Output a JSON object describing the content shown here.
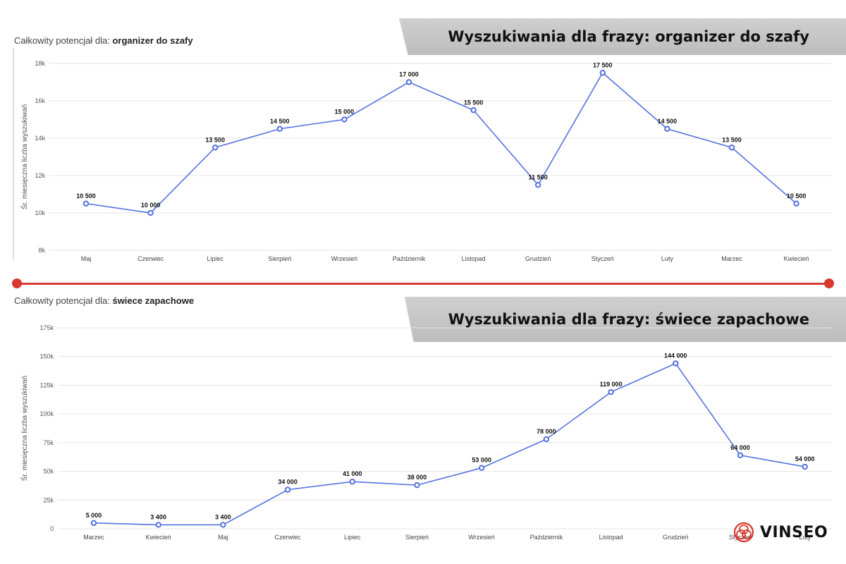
{
  "colors": {
    "line": "#5472e0",
    "accent": "#d83a30",
    "banner": "#c4c4c4"
  },
  "chart1": {
    "subtitle_prefix": "Całkowity potencjał dla: ",
    "subtitle_keyword": "organizer do szafy",
    "banner": "Wyszukiwania dla frazy: organizer do szafy"
  },
  "chart2": {
    "subtitle_prefix": "Całkowity potencjał dla: ",
    "subtitle_keyword": "świece zapachowe",
    "banner": "Wyszukiwania dla frazy: świece zapachowe"
  },
  "logo": {
    "text": "VINSEO",
    "icon": "vinseo-logo-icon"
  },
  "chart_data": [
    {
      "type": "line",
      "title": "",
      "xlabel": "",
      "ylabel": "Śr. miesięczna liczba wyszukiwań",
      "categories": [
        "Maj",
        "Czerwiec",
        "Lipiec",
        "Sierpień",
        "Wrzesień",
        "Październik",
        "Listopad",
        "Grudzień",
        "Styczeń",
        "Luty",
        "Marzec",
        "Kwiecień"
      ],
      "values": [
        10500,
        10000,
        13500,
        14500,
        15000,
        17000,
        15500,
        11500,
        17500,
        14500,
        13500,
        10500
      ],
      "data_labels": [
        "10 500",
        "10 000",
        "13 500",
        "14 500",
        "15 000",
        "17 000",
        "15 500",
        "11 500",
        "17 500",
        "14 500",
        "13 500",
        "10 500"
      ],
      "ylim": [
        8000,
        18000
      ],
      "yticks": [
        8000,
        10000,
        12000,
        14000,
        16000,
        18000
      ],
      "ytick_labels": [
        "8k",
        "10k",
        "12k",
        "14k",
        "16k",
        "18k"
      ],
      "grid": true
    },
    {
      "type": "line",
      "title": "",
      "xlabel": "",
      "ylabel": "Śr. miesięczna liczba wyszukiwań",
      "categories": [
        "Marzec",
        "Kwiecień",
        "Maj",
        "Czerwiec",
        "Lipiec",
        "Sierpień",
        "Wrzesień",
        "Październik",
        "Listopad",
        "Grudzień",
        "Styczeń",
        "Luty"
      ],
      "values": [
        5000,
        3400,
        3400,
        34000,
        41000,
        38000,
        53000,
        78000,
        119000,
        144000,
        64000,
        54000
      ],
      "data_labels": [
        "5 000",
        "3 400",
        "3 400",
        "34 000",
        "41 000",
        "38 000",
        "53 000",
        "78 000",
        "119 000",
        "144 000",
        "64 000",
        "54 000"
      ],
      "ylim": [
        0,
        175000
      ],
      "yticks": [
        0,
        25000,
        50000,
        75000,
        100000,
        125000,
        150000,
        175000
      ],
      "ytick_labels": [
        "0",
        "25k",
        "50k",
        "75k",
        "100k",
        "125k",
        "150k",
        "175k"
      ],
      "grid": true
    }
  ]
}
